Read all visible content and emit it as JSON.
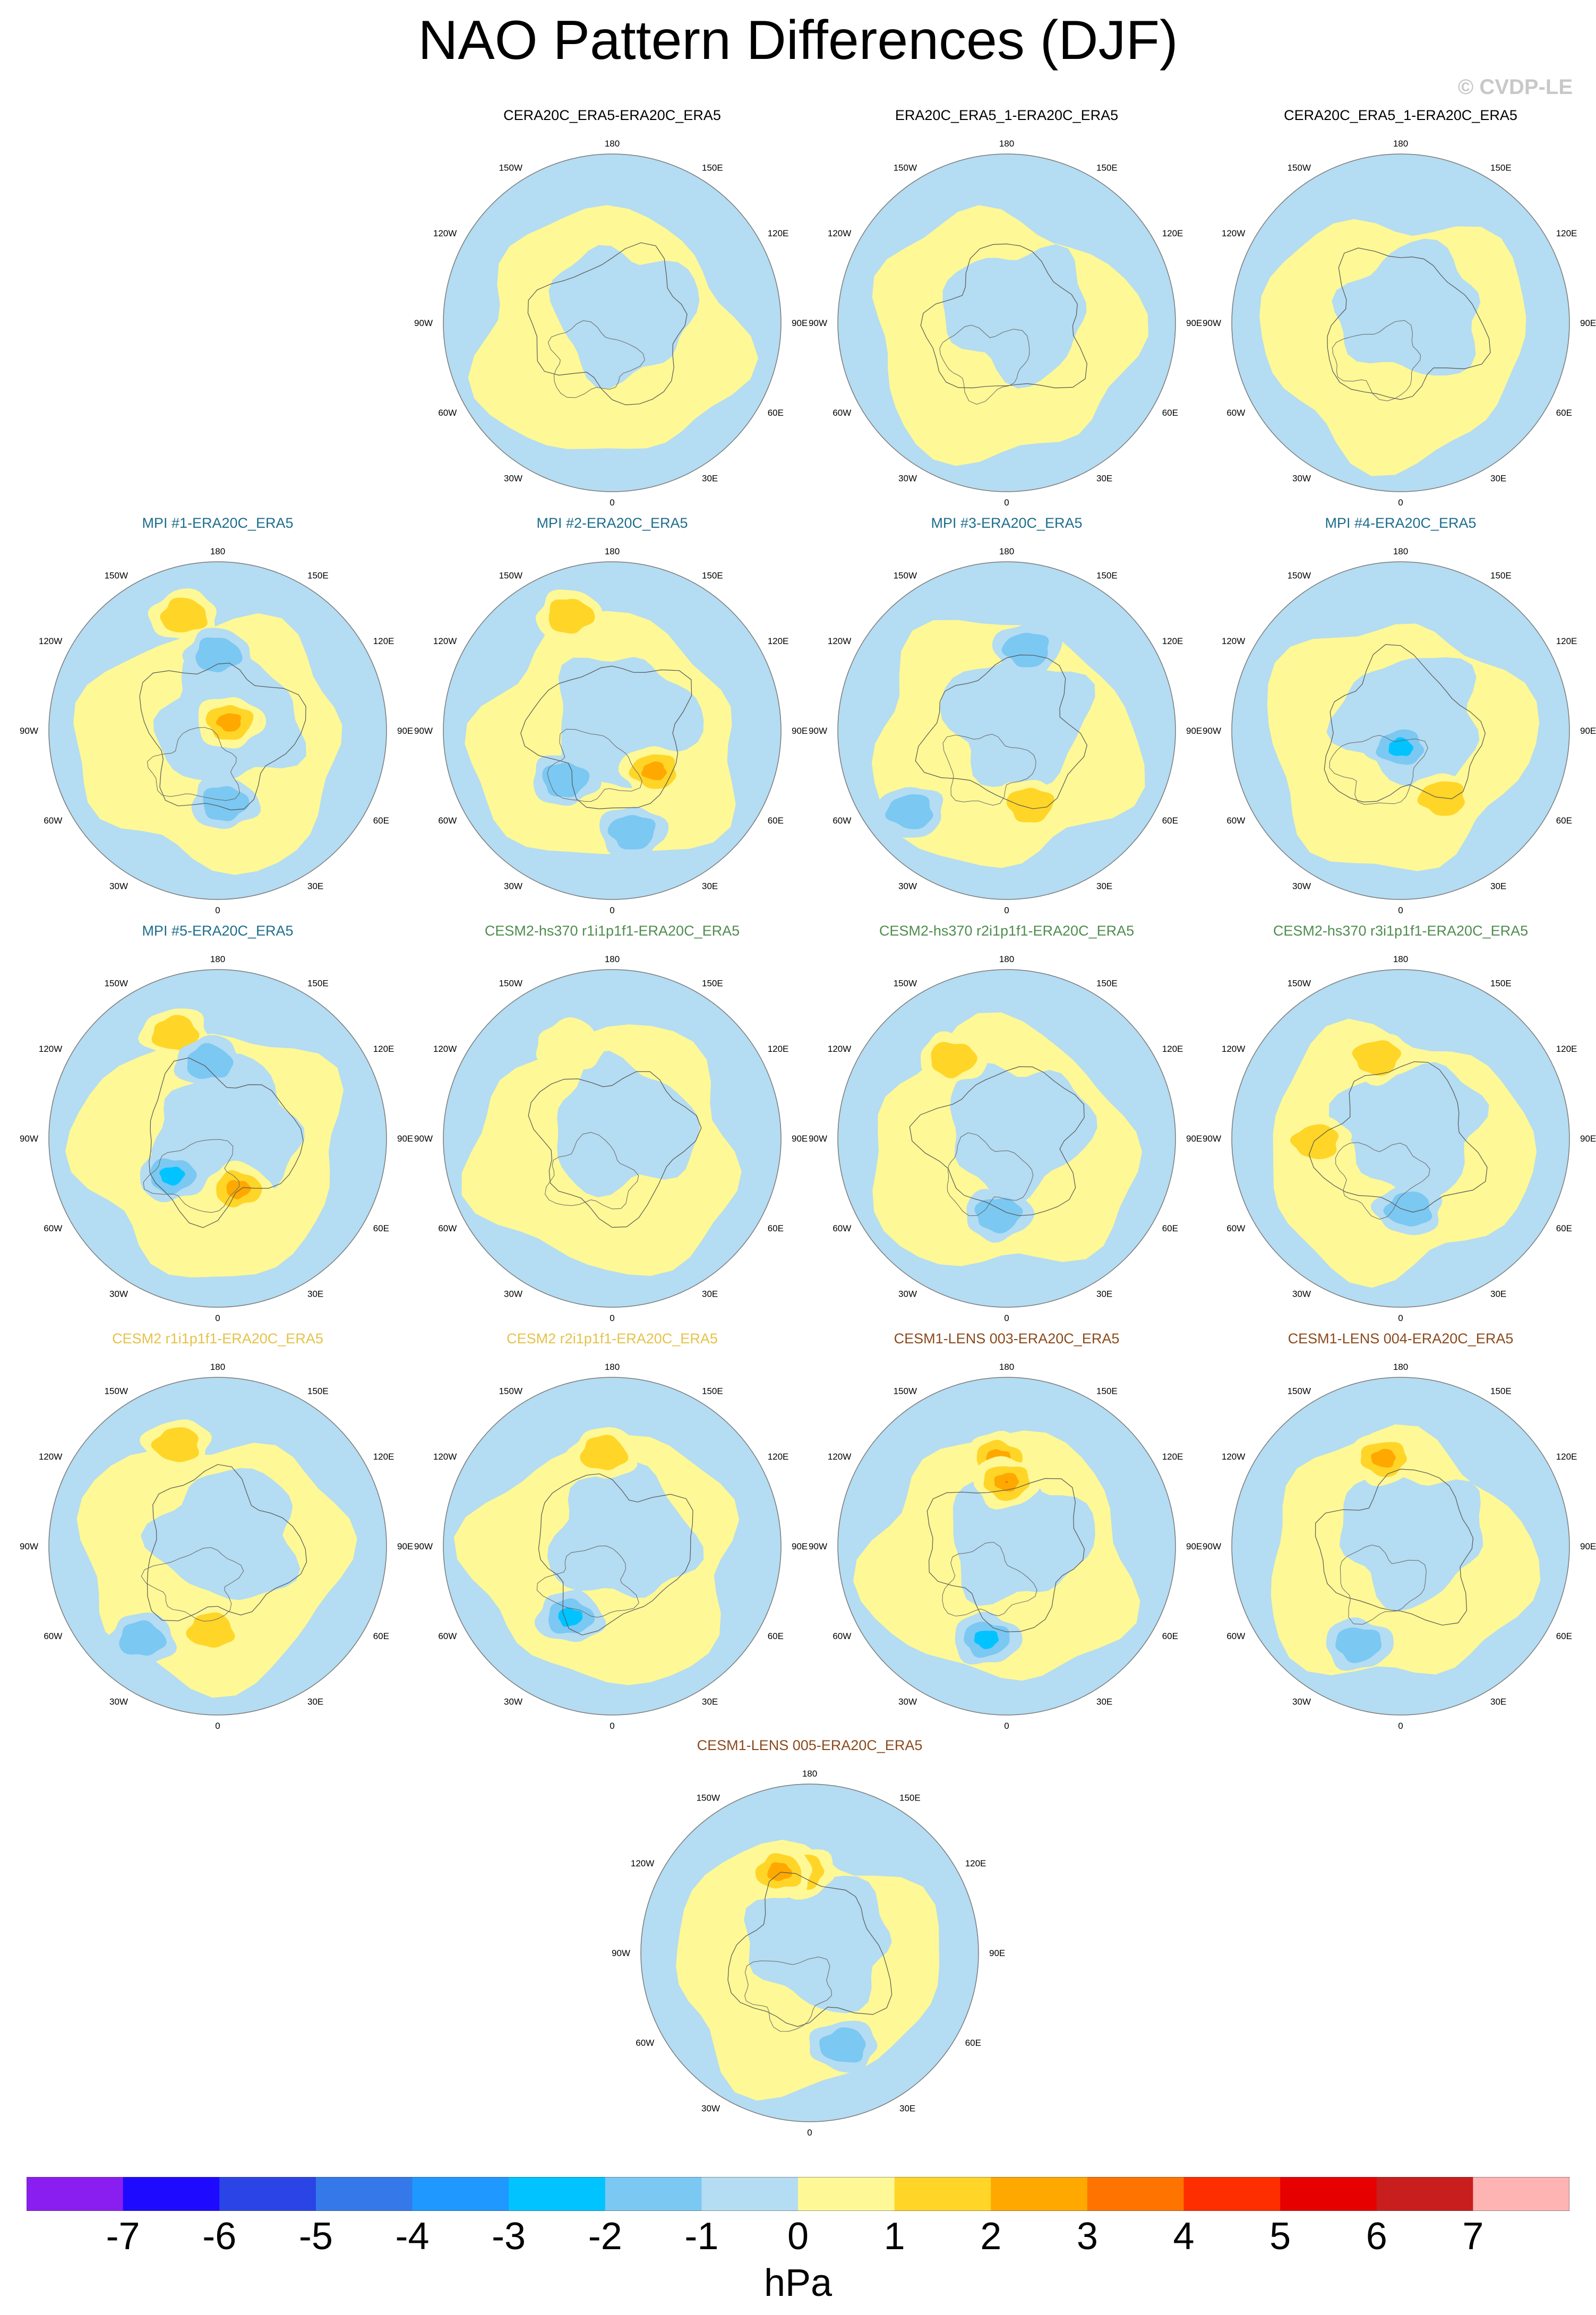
{
  "title": "NAO Pattern Differences (DJF)",
  "copyright": "© CVDP-LE",
  "grid_labels": {
    "top": "180",
    "top_left": "150W",
    "top_right": "150E",
    "upper_left": "120W",
    "upper_right": "120E",
    "left": "90W",
    "right": "90E",
    "lower_left": "60W",
    "lower_right": "60E",
    "bottom_left": "30W",
    "bottom_right": "30E",
    "bottom": "0"
  },
  "chart_data": {
    "type": "heatmap",
    "colorbar": {
      "units": "hPa",
      "ticks": [
        "-7",
        "-6",
        "-5",
        "-4",
        "-3",
        "-2",
        "-1",
        "0",
        "1",
        "2",
        "3",
        "4",
        "5",
        "6",
        "7"
      ],
      "colors": [
        "#8a1ef0",
        "#1e0aff",
        "#2a44e6",
        "#3478ea",
        "#1f98ff",
        "#00c3ff",
        "#7bc8f2",
        "#b4dcf2",
        "#fef896",
        "#ffd528",
        "#ffa800",
        "#ff7300",
        "#ff2e00",
        "#e60000",
        "#c81e1e",
        "#ffb4b4"
      ]
    },
    "panels": [
      {
        "title": "CERA20C_ERA5-ERA20C_ERA5",
        "title_color": "#000000",
        "blobs": []
      },
      {
        "title": "ERA20C_ERA5_1-ERA20C_ERA5",
        "title_color": "#000000",
        "blobs": []
      },
      {
        "title": "CERA20C_ERA5_1-ERA20C_ERA5",
        "title_color": "#000000",
        "blobs": []
      },
      {
        "title": "MPI #1-ERA20C_ERA5",
        "title_color": "#1d6e8c",
        "blobs": [
          {
            "dx": -0.2,
            "dy": -0.68,
            "value": 2
          },
          {
            "dx": 0.07,
            "dy": -0.05,
            "value": 3
          },
          {
            "dx": 0.0,
            "dy": -0.45,
            "value": -2
          },
          {
            "dx": 0.04,
            "dy": 0.43,
            "value": -2
          }
        ]
      },
      {
        "title": "MPI #2-ERA20C_ERA5",
        "title_color": "#1d6e8c",
        "blobs": [
          {
            "dx": -0.25,
            "dy": -0.68,
            "value": 2
          },
          {
            "dx": 0.25,
            "dy": 0.24,
            "value": 3
          },
          {
            "dx": -0.28,
            "dy": 0.29,
            "value": -2
          },
          {
            "dx": 0.12,
            "dy": 0.6,
            "value": -2
          }
        ]
      },
      {
        "title": "MPI #3-ERA20C_ERA5",
        "title_color": "#1d6e8c",
        "blobs": [
          {
            "dx": 0.14,
            "dy": 0.44,
            "value": 2
          },
          {
            "dx": 0.12,
            "dy": -0.48,
            "value": -2
          },
          {
            "dx": -0.57,
            "dy": 0.48,
            "value": -2
          }
        ]
      },
      {
        "title": "MPI #4-ERA20C_ERA5",
        "title_color": "#1d6e8c",
        "blobs": [
          {
            "dx": 0.25,
            "dy": 0.4,
            "value": 2
          },
          {
            "dx": 0.0,
            "dy": 0.1,
            "value": -3
          }
        ]
      },
      {
        "title": "MPI #5-ERA20C_ERA5",
        "title_color": "#1d6e8c",
        "blobs": [
          {
            "dx": -0.25,
            "dy": -0.62,
            "value": 2
          },
          {
            "dx": 0.12,
            "dy": 0.3,
            "value": 3
          },
          {
            "dx": -0.27,
            "dy": 0.22,
            "value": -3
          },
          {
            "dx": -0.05,
            "dy": -0.45,
            "value": -2
          }
        ]
      },
      {
        "title": "CESM2-hs370 r1i1p1f1-ERA20C_ERA5",
        "title_color": "#4f8c4f",
        "blobs": [
          {
            "dx": -0.25,
            "dy": -0.55,
            "value": 1
          }
        ]
      },
      {
        "title": "CESM2-hs370 r2i1p1f1-ERA20C_ERA5",
        "title_color": "#4f8c4f",
        "blobs": [
          {
            "dx": -0.32,
            "dy": -0.47,
            "value": 2
          },
          {
            "dx": -0.05,
            "dy": 0.45,
            "value": -2
          }
        ]
      },
      {
        "title": "CESM2-hs370 r3i1p1f1-ERA20C_ERA5",
        "title_color": "#4f8c4f",
        "blobs": [
          {
            "dx": -0.14,
            "dy": -0.48,
            "value": 2
          },
          {
            "dx": -0.5,
            "dy": 0.02,
            "value": 2
          },
          {
            "dx": 0.05,
            "dy": 0.42,
            "value": -2
          }
        ]
      },
      {
        "title": "CESM2 r1i1p1f1-ERA20C_ERA5",
        "title_color": "#e6c24a",
        "blobs": [
          {
            "dx": -0.24,
            "dy": -0.6,
            "value": 2
          },
          {
            "dx": -0.04,
            "dy": 0.5,
            "value": 2
          },
          {
            "dx": -0.45,
            "dy": 0.55,
            "value": -2
          }
        ]
      },
      {
        "title": "CESM2 r2i1p1f1-ERA20C_ERA5",
        "title_color": "#e6c24a",
        "blobs": [
          {
            "dx": -0.05,
            "dy": -0.55,
            "value": 2
          },
          {
            "dx": -0.25,
            "dy": 0.42,
            "value": -3
          }
        ]
      },
      {
        "title": "CESM1-LENS 003-ERA20C_ERA5",
        "title_color": "#8b4a1c",
        "blobs": [
          {
            "dx": -0.05,
            "dy": -0.52,
            "value": 3
          },
          {
            "dx": 0.0,
            "dy": -0.38,
            "value": 4
          },
          {
            "dx": -0.12,
            "dy": 0.55,
            "value": -3
          }
        ]
      },
      {
        "title": "CESM1-LENS 004-ERA20C_ERA5",
        "title_color": "#8b4a1c",
        "blobs": [
          {
            "dx": -0.1,
            "dy": -0.52,
            "value": 3
          },
          {
            "dx": -0.25,
            "dy": 0.58,
            "value": -2
          }
        ]
      },
      {
        "title": "CESM1-LENS 005-ERA20C_ERA5",
        "title_color": "#8b4a1c",
        "blobs": [
          {
            "dx": -0.05,
            "dy": -0.48,
            "value": 2
          },
          {
            "dx": -0.18,
            "dy": -0.48,
            "value": 3
          },
          {
            "dx": 0.2,
            "dy": 0.55,
            "value": -2
          }
        ]
      }
    ]
  }
}
